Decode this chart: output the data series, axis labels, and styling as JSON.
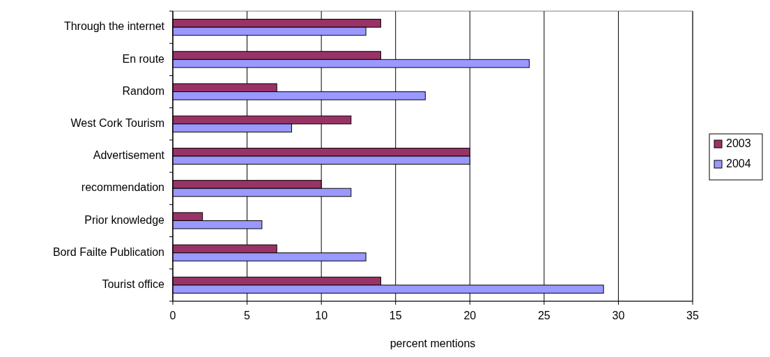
{
  "chart_data": {
    "type": "bar",
    "orientation": "horizontal",
    "xlabel": "percent mentions",
    "categories": [
      "Through the internet",
      "En route",
      "Random",
      "West Cork Tourism",
      "Advertisement",
      "recommendation",
      "Prior knowledge",
      "Bord Failte Publication",
      "Tourist office"
    ],
    "series": [
      {
        "name": "2003",
        "color": "#993366",
        "values": [
          14,
          14,
          7,
          12,
          20,
          10,
          2,
          7,
          14
        ]
      },
      {
        "name": "2004",
        "color": "#9999ff",
        "values": [
          13,
          24,
          17,
          8,
          20,
          12,
          6,
          13,
          29
        ]
      }
    ],
    "xlim": [
      0,
      35
    ],
    "xticks": [
      0,
      5,
      10,
      15,
      20,
      25,
      30,
      35
    ],
    "grid": "x",
    "legend": "right"
  }
}
